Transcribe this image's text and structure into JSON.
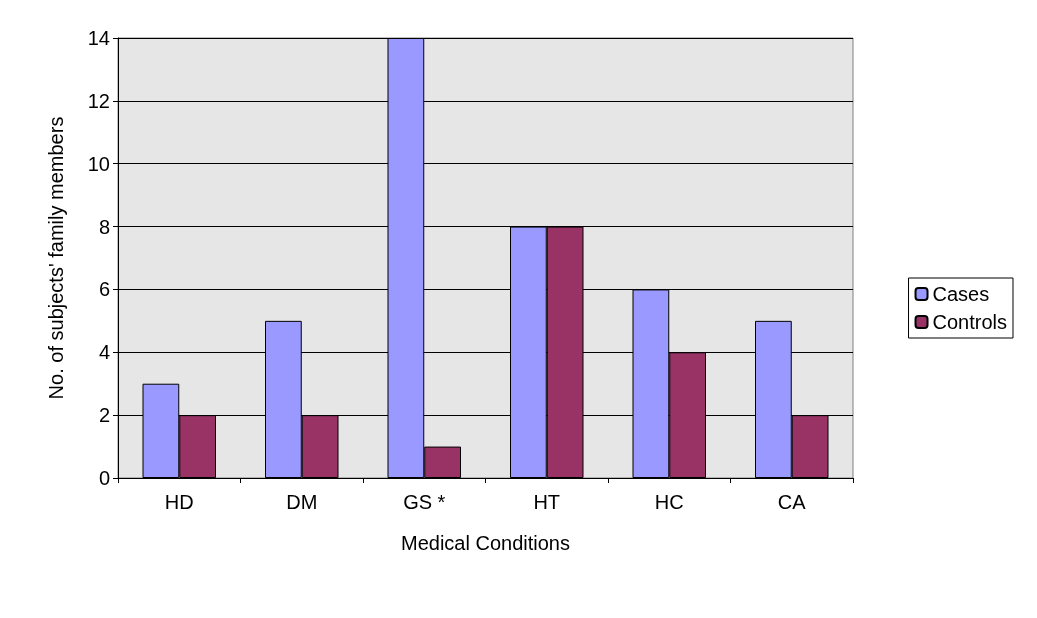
{
  "chart_data": {
    "type": "bar",
    "xlabel": "Medical Conditions",
    "ylabel": "No. of subjects' family members",
    "categories": [
      "HD",
      "DM",
      "GS *",
      "HT",
      "HC",
      "CA"
    ],
    "series": [
      {
        "name": "Cases",
        "color": "#9999ff",
        "values": [
          3,
          5,
          14,
          8,
          6,
          5
        ]
      },
      {
        "name": "Controls",
        "color": "#993366",
        "values": [
          2,
          2,
          1,
          8,
          4,
          2
        ]
      }
    ],
    "ylim": [
      0,
      14
    ],
    "yticks": [
      0,
      2,
      4,
      6,
      8,
      10,
      12,
      14
    ],
    "grid": "y",
    "legend": "right"
  }
}
